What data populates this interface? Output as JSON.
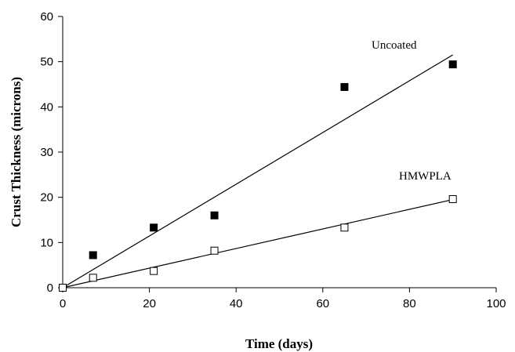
{
  "chart_data": {
    "type": "scatter",
    "title": "",
    "xlabel": "Time (days)",
    "ylabel": "Crust Thickness (microns)",
    "xlim": [
      0,
      100
    ],
    "ylim": [
      0,
      60
    ],
    "xticks": [
      0,
      20,
      40,
      60,
      80,
      100
    ],
    "yticks": [
      0,
      10,
      20,
      30,
      40,
      50,
      60
    ],
    "grid": false,
    "legend": "none",
    "series": [
      {
        "name": "Uncoated",
        "marker": "filled-square",
        "color": "#000000",
        "x": [
          0,
          7,
          21,
          35,
          65,
          90
        ],
        "y": [
          0,
          7.2,
          13.3,
          16,
          44.4,
          49.4
        ],
        "trendline": {
          "x": [
            0,
            90
          ],
          "y": [
            0,
            51.5
          ]
        }
      },
      {
        "name": "HMWPLA",
        "marker": "open-square",
        "color": "#000000",
        "x": [
          0,
          7,
          21,
          35,
          65,
          90
        ],
        "y": [
          0,
          2.2,
          3.7,
          8.2,
          13.3,
          19.6
        ],
        "trendline": {
          "x": [
            0,
            90
          ],
          "y": [
            0,
            19.5
          ]
        }
      }
    ]
  }
}
